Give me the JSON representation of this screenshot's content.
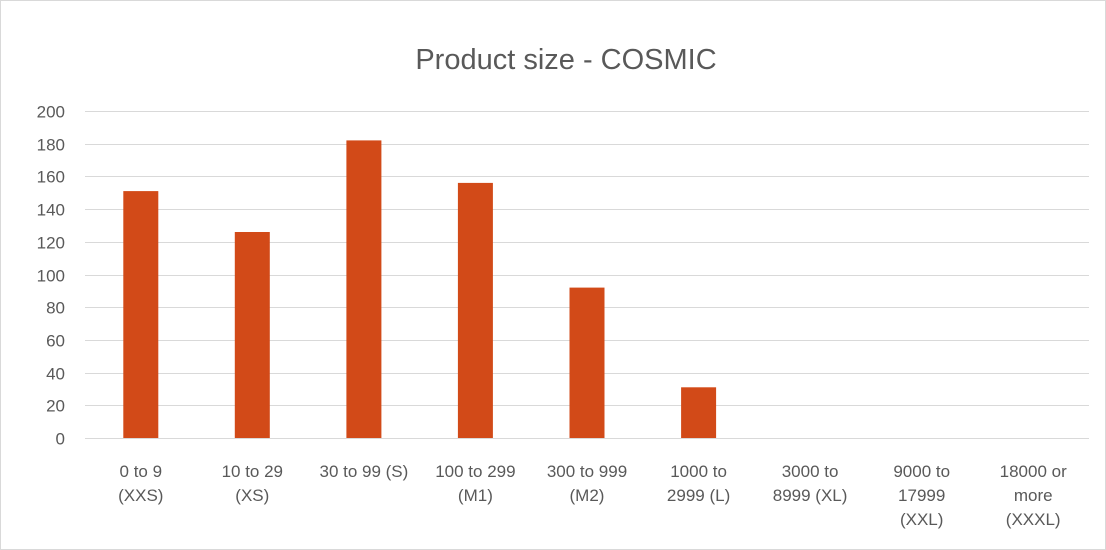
{
  "chart_data": {
    "type": "bar",
    "title": "Product size - COSMIC",
    "xlabel": "",
    "ylabel": "",
    "ylim": [
      0,
      200
    ],
    "yticks": [
      0,
      20,
      40,
      60,
      80,
      100,
      120,
      140,
      160,
      180,
      200
    ],
    "categories": [
      [
        "0 to 9",
        "(XXS)"
      ],
      [
        "10 to 29",
        "(XS)"
      ],
      [
        "30 to 99 (S)"
      ],
      [
        "100 to 299",
        "(M1)"
      ],
      [
        "300 to 999",
        "(M2)"
      ],
      [
        "1000 to",
        "2999 (L)"
      ],
      [
        "3000 to",
        "8999 (XL)"
      ],
      [
        "9000 to",
        "17999",
        "(XXL)"
      ],
      [
        "18000 or",
        "more",
        "(XXXL)"
      ]
    ],
    "values": [
      151,
      126,
      182,
      156,
      92,
      31,
      0,
      0,
      0
    ],
    "bar_color": "#D24A18",
    "grid": true,
    "legend": "none"
  }
}
